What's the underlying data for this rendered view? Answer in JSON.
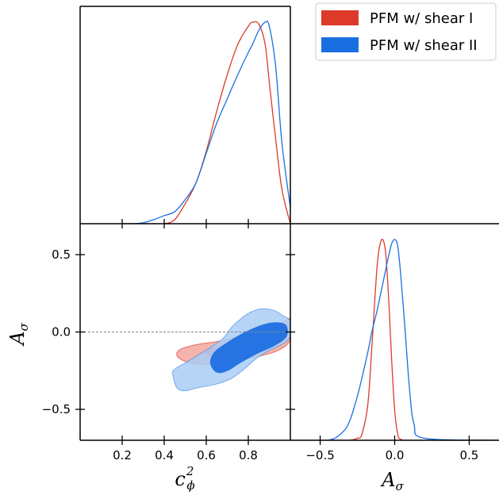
{
  "colors": {
    "series_1": "#dd3a2a",
    "series_2": "#1a6fe0",
    "series_1_fill_outer": "#f3a6a0",
    "series_2_fill_outer": "#a9cdf4",
    "series_2_fill_inner": "#1f6fe3",
    "reference_line": "#888888"
  },
  "chart_data": {
    "type": "corner-plot",
    "legend": {
      "placement": "top-right",
      "entries": [
        {
          "label": "PFM w/ shear I",
          "color": "#dd3a2a"
        },
        {
          "label": "PFM w/ shear II",
          "color": "#1a6fe0"
        }
      ]
    },
    "labels": {
      "x_param": {
        "base": "c",
        "sup": "2",
        "sub": "ϕ"
      },
      "y_param": {
        "base": "A",
        "sub": "σ"
      },
      "x2_param": {
        "base": "A",
        "sub": "σ"
      }
    },
    "axes": {
      "c_phi2": {
        "range": [
          0.0,
          1.0
        ],
        "ticks": [
          0.2,
          0.4,
          0.6,
          0.8
        ],
        "tick_labels": [
          "0.2",
          "0.4",
          "0.6",
          "0.8"
        ]
      },
      "A_sigma": {
        "range": [
          -0.7,
          0.7
        ],
        "ticks": [
          -0.5,
          0.0,
          0.5
        ],
        "tick_labels": [
          "−0.5",
          "0.0",
          "0.5"
        ]
      }
    },
    "reference_line": {
      "param": "A_sigma",
      "value": 0.0,
      "style": "dashed"
    },
    "marginal_c_phi2": {
      "x": [
        0.2,
        0.25,
        0.3,
        0.35,
        0.4,
        0.45,
        0.5,
        0.55,
        0.6,
        0.65,
        0.7,
        0.75,
        0.8,
        0.82,
        0.85,
        0.88,
        0.9,
        0.93,
        0.96,
        1.0
      ],
      "series": [
        {
          "name": "PFM w/ shear I",
          "values": [
            0.0,
            0.0,
            0.0,
            0.0,
            0.0,
            0.02,
            0.1,
            0.2,
            0.36,
            0.56,
            0.74,
            0.89,
            0.98,
            1.0,
            0.99,
            0.89,
            0.7,
            0.42,
            0.17,
            0.0
          ]
        },
        {
          "name": "PFM w/ shear II",
          "values": [
            0.0,
            0.0,
            0.005,
            0.02,
            0.04,
            0.06,
            0.12,
            0.2,
            0.35,
            0.5,
            0.62,
            0.74,
            0.85,
            0.89,
            0.96,
            1.0,
            0.98,
            0.78,
            0.4,
            0.08
          ]
        }
      ]
    },
    "marginal_A_sigma": {
      "x": [
        -0.7,
        -0.45,
        -0.35,
        -0.3,
        -0.25,
        -0.22,
        -0.18,
        -0.15,
        -0.12,
        -0.1,
        -0.08,
        -0.06,
        -0.04,
        -0.02,
        0.0,
        0.02,
        0.04,
        0.07,
        0.1,
        0.13,
        0.2,
        0.7
      ],
      "series": [
        {
          "name": "PFM w/ shear I",
          "values": [
            0.0,
            0.0,
            0.0,
            0.0,
            0.01,
            0.03,
            0.18,
            0.5,
            0.85,
            0.97,
            1.0,
            0.93,
            0.7,
            0.4,
            0.15,
            0.03,
            0.005,
            0.0,
            0.0,
            0.0,
            0.0,
            0.0
          ]
        },
        {
          "name": "PFM w/ shear II",
          "values": [
            0.0,
            0.0,
            0.04,
            0.1,
            0.22,
            0.31,
            0.44,
            0.55,
            0.64,
            0.71,
            0.78,
            0.85,
            0.92,
            0.98,
            1.0,
            0.97,
            0.83,
            0.55,
            0.25,
            0.08,
            0.01,
            0.0
          ]
        }
      ]
    },
    "contours": [
      {
        "name": "PFM w/ shear I",
        "levels": [
          {
            "level": "95%",
            "points": [
              [
                0.46,
                -0.15
              ],
              [
                0.48,
                -0.11
              ],
              [
                0.56,
                -0.08
              ],
              [
                0.66,
                -0.06
              ],
              [
                0.76,
                -0.03
              ],
              [
                0.86,
                0.01
              ],
              [
                0.96,
                0.06
              ],
              [
                1.0,
                0.08
              ],
              [
                1.0,
                -0.05
              ],
              [
                0.94,
                -0.12
              ],
              [
                0.84,
                -0.16
              ],
              [
                0.72,
                -0.19
              ],
              [
                0.6,
                -0.21
              ],
              [
                0.5,
                -0.19
              ]
            ]
          },
          {
            "level": "68%",
            "points": [
              [
                0.6,
                -0.12
              ],
              [
                0.68,
                -0.09
              ],
              [
                0.78,
                -0.06
              ],
              [
                0.88,
                -0.02
              ],
              [
                0.96,
                0.02
              ],
              [
                0.98,
                -0.03
              ],
              [
                0.92,
                -0.09
              ],
              [
                0.82,
                -0.12
              ],
              [
                0.72,
                -0.15
              ],
              [
                0.63,
                -0.16
              ]
            ]
          }
        ]
      },
      {
        "name": "PFM w/ shear II",
        "levels": [
          {
            "level": "95%",
            "points": [
              [
                0.44,
                -0.27
              ],
              [
                0.45,
                -0.24
              ],
              [
                0.5,
                -0.2
              ],
              [
                0.56,
                -0.15
              ],
              [
                0.62,
                -0.1
              ],
              [
                0.68,
                -0.04
              ],
              [
                0.72,
                0.03
              ],
              [
                0.76,
                0.08
              ],
              [
                0.8,
                0.12
              ],
              [
                0.86,
                0.15
              ],
              [
                0.92,
                0.14
              ],
              [
                0.96,
                0.11
              ],
              [
                1.0,
                0.07
              ],
              [
                1.0,
                -0.03
              ],
              [
                0.96,
                -0.08
              ],
              [
                0.9,
                -0.12
              ],
              [
                0.84,
                -0.17
              ],
              [
                0.78,
                -0.24
              ],
              [
                0.72,
                -0.3
              ],
              [
                0.64,
                -0.34
              ],
              [
                0.56,
                -0.36
              ],
              [
                0.5,
                -0.38
              ],
              [
                0.46,
                -0.36
              ]
            ]
          },
          {
            "level": "68%",
            "points": [
              [
                0.62,
                -0.2
              ],
              [
                0.64,
                -0.13
              ],
              [
                0.7,
                -0.07
              ],
              [
                0.76,
                -0.02
              ],
              [
                0.82,
                0.02
              ],
              [
                0.88,
                0.05
              ],
              [
                0.94,
                0.06
              ],
              [
                0.98,
                0.04
              ],
              [
                0.98,
                -0.03
              ],
              [
                0.92,
                -0.09
              ],
              [
                0.84,
                -0.14
              ],
              [
                0.76,
                -0.2
              ],
              [
                0.7,
                -0.25
              ],
              [
                0.65,
                -0.26
              ]
            ]
          }
        ]
      }
    ]
  }
}
